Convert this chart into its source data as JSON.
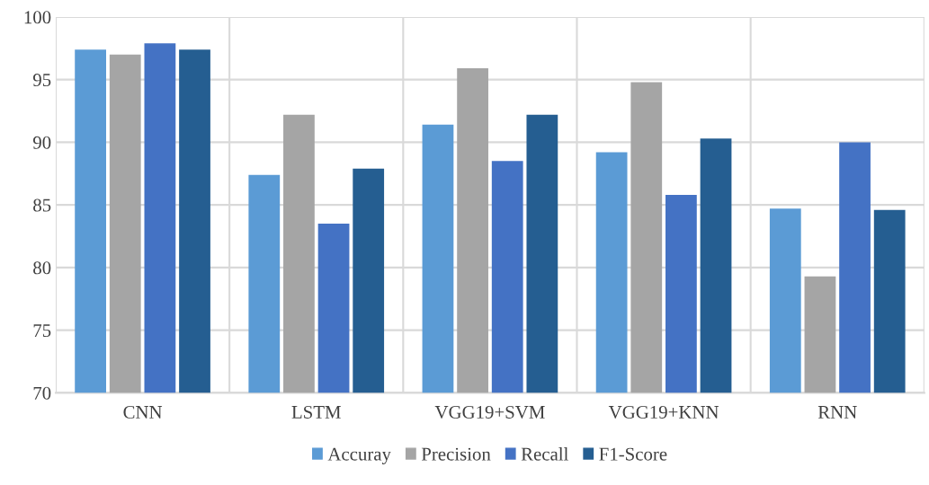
{
  "chart_data": {
    "type": "bar",
    "categories": [
      "CNN",
      "LSTM",
      "VGG19+SVM",
      "VGG19+KNN",
      "RNN"
    ],
    "series": [
      {
        "name": "Accuray",
        "color": "#5b9bd5",
        "values": [
          97.4,
          87.4,
          91.4,
          89.2,
          84.7
        ]
      },
      {
        "name": "Precision",
        "color": "#a5a5a5",
        "values": [
          97.0,
          92.2,
          95.9,
          94.8,
          79.3
        ]
      },
      {
        "name": "Recall",
        "color": "#4472c4",
        "values": [
          97.9,
          83.5,
          88.5,
          85.8,
          90.0
        ]
      },
      {
        "name": "F1-Score",
        "color": "#255e91",
        "values": [
          97.4,
          87.9,
          92.2,
          90.3,
          84.6
        ]
      }
    ],
    "ylim": [
      70,
      100
    ],
    "yticks": [
      70,
      75,
      80,
      85,
      90,
      95,
      100
    ],
    "grid": true,
    "legend": "bottom"
  }
}
